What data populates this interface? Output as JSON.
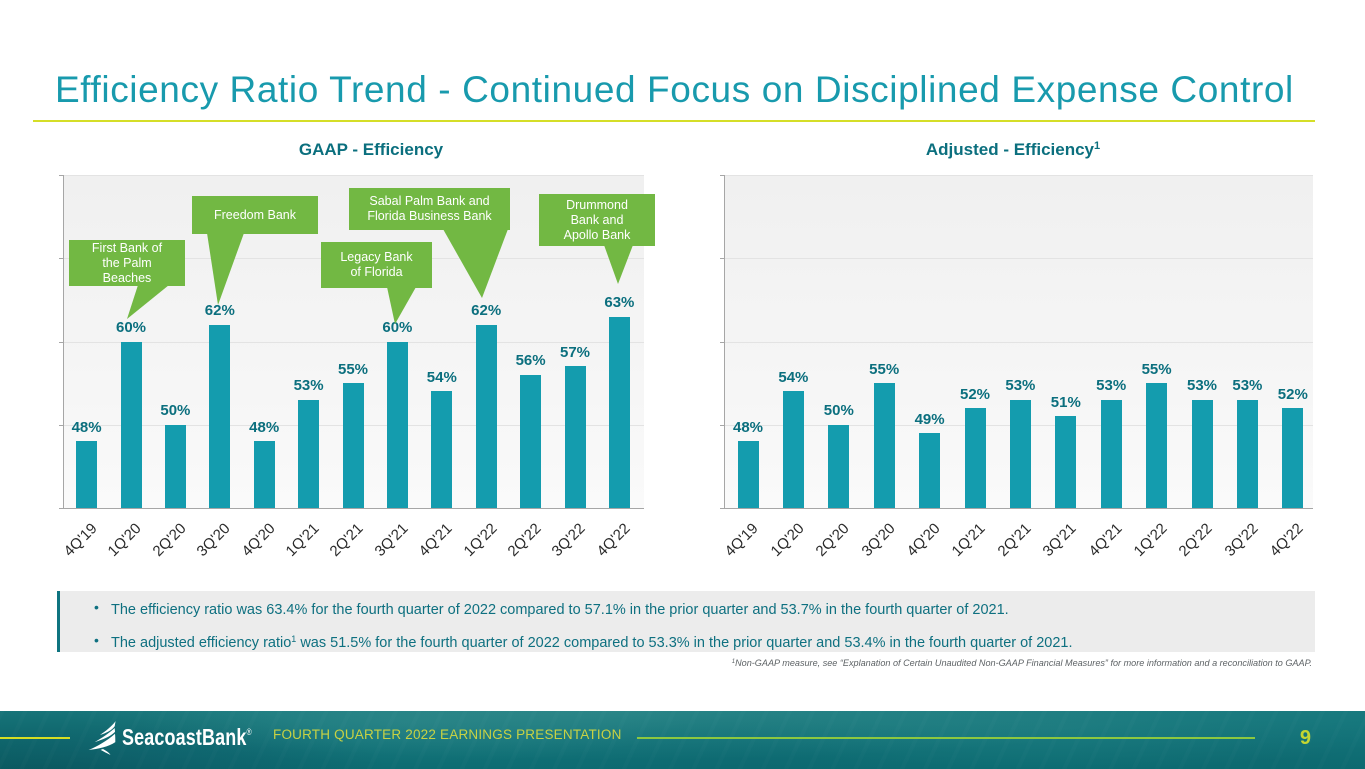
{
  "header": {
    "title": "Efficiency Ratio Trend - Continued Focus on Disciplined Expense Control"
  },
  "chart_data": [
    {
      "type": "bar",
      "title": "GAAP - Efficiency",
      "title_superscript": "",
      "categories": [
        "4Q'19",
        "1Q'20",
        "2Q'20",
        "3Q'20",
        "4Q'20",
        "1Q'21",
        "2Q'21",
        "3Q'21",
        "4Q'21",
        "1Q'22",
        "2Q'22",
        "3Q'22",
        "4Q'22"
      ],
      "values": [
        48,
        60,
        50,
        62,
        48,
        53,
        55,
        60,
        54,
        62,
        56,
        57,
        63
      ],
      "value_labels": [
        "48%",
        "60%",
        "50%",
        "62%",
        "48%",
        "53%",
        "55%",
        "60%",
        "54%",
        "62%",
        "56%",
        "57%",
        "63%"
      ],
      "ylim": [
        40,
        80
      ],
      "gridline_values": [
        50,
        60,
        70,
        80
      ],
      "grid": true,
      "legend_position": "none",
      "bar_color": "#149CAE",
      "callouts": [
        {
          "lines": [
            "First Bank of",
            "the Palm",
            "Beaches"
          ]
        },
        {
          "lines": [
            "Freedom Bank"
          ]
        },
        {
          "lines": [
            "Legacy Bank",
            "of Florida"
          ]
        },
        {
          "lines": [
            "Sabal Palm Bank and",
            "Florida Business Bank"
          ]
        },
        {
          "lines": [
            "Drummond",
            "Bank and",
            "Apollo Bank"
          ]
        }
      ]
    },
    {
      "type": "bar",
      "title": "Adjusted - Efficiency",
      "title_superscript": "1",
      "categories": [
        "4Q'19",
        "1Q'20",
        "2Q'20",
        "3Q'20",
        "4Q'20",
        "1Q'21",
        "2Q'21",
        "3Q'21",
        "4Q'21",
        "1Q'22",
        "2Q'22",
        "3Q'22",
        "4Q'22"
      ],
      "values": [
        48,
        54,
        50,
        55,
        49,
        52,
        53,
        51,
        53,
        55,
        53,
        53,
        52
      ],
      "value_labels": [
        "48%",
        "54%",
        "50%",
        "55%",
        "49%",
        "52%",
        "53%",
        "51%",
        "53%",
        "55%",
        "53%",
        "53%",
        "52%"
      ],
      "ylim": [
        40,
        80
      ],
      "gridline_values": [
        50,
        60,
        70,
        80
      ],
      "grid": true,
      "legend_position": "none",
      "bar_color": "#149CAE",
      "callouts": []
    }
  ],
  "bullet_marker": "•",
  "bullets": [
    {
      "pre": "The efficiency ratio was 63.4% for the fourth quarter of 2022 compared to 57.1% in the prior quarter and 53.7% in the fourth quarter of 2021.",
      "sup": "",
      "post": ""
    },
    {
      "pre": "The adjusted efficiency ratio",
      "sup": "1",
      "post": " was 51.5% for the fourth quarter of 2022 compared to 53.3% in the prior quarter and 53.4% in the fourth quarter of 2021."
    }
  ],
  "footnote": {
    "sup": "1",
    "text": "Non-GAAP measure, see “Explanation of Certain Unaudited Non-GAAP Financial Measures” for more information and a reconciliation to GAAP."
  },
  "footer": {
    "brand": "SeacoastBank",
    "registered": "®",
    "caption": "FOURTH QUARTER 2022 EARNINGS PRESENTATION",
    "page_number": "9"
  },
  "colors": {
    "title_teal": "#189AAD",
    "bar_teal": "#149CAE",
    "label_teal": "#0B6F7E",
    "callout_green": "#72B843",
    "underline_yellow": "#D5DE28",
    "footer_teal": "#117279",
    "footer_yellow_line": "#D6DE23",
    "footer_green_line": "#8CC83F",
    "bullet_text": "#0E7080",
    "bullet_bg": "#ECECEC"
  }
}
